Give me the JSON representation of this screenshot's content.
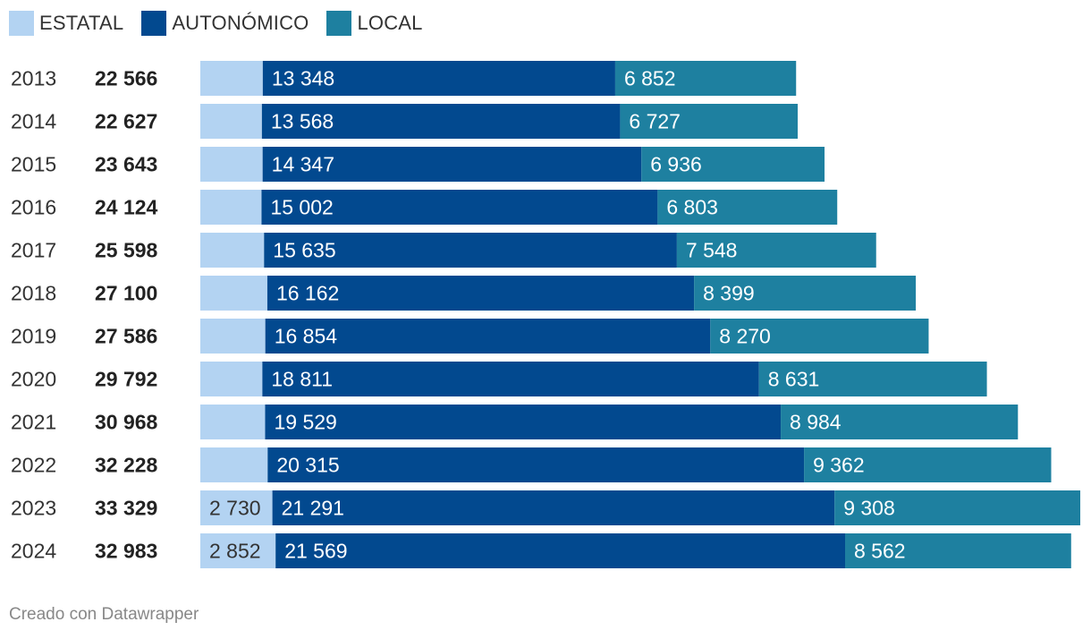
{
  "legend": [
    {
      "label": "ESTATAL",
      "color": "#b3d3f2"
    },
    {
      "label": "AUTONÓMICO",
      "color": "#02498f"
    },
    {
      "label": "LOCAL",
      "color": "#1e80a0"
    }
  ],
  "footer": {
    "credit": "Creado con Datawrapper"
  },
  "chart_data": {
    "type": "bar",
    "orientation": "horizontal",
    "stacked": true,
    "title": "",
    "categories": [
      "2013",
      "2014",
      "2015",
      "2016",
      "2017",
      "2018",
      "2019",
      "2020",
      "2021",
      "2022",
      "2023",
      "2024"
    ],
    "totals": [
      "22 566",
      "22 627",
      "23 643",
      "24 124",
      "25 598",
      "27 100",
      "27 586",
      "29 792",
      "30 968",
      "32 228",
      "33 329",
      "32 983"
    ],
    "series": [
      {
        "name": "ESTATAL",
        "color": "#b3d3f2",
        "label_color": "#333333",
        "values": [
          2366,
          2332,
          2360,
          2319,
          2415,
          2539,
          2462,
          2350,
          2455,
          2551,
          2730,
          2852
        ],
        "labels": [
          "",
          "",
          "",
          "",
          "",
          "",
          "",
          "",
          "",
          "",
          "2 730",
          "2 852"
        ]
      },
      {
        "name": "AUTONÓMICO",
        "color": "#02498f",
        "label_color": "#ffffff",
        "values": [
          13348,
          13568,
          14347,
          15002,
          15635,
          16162,
          16854,
          18811,
          19529,
          20315,
          21291,
          21569
        ],
        "labels": [
          "13 348",
          "13 568",
          "14 347",
          "15 002",
          "15 635",
          "16 162",
          "16 854",
          "18 811",
          "19 529",
          "20 315",
          "21 291",
          "21 569"
        ]
      },
      {
        "name": "LOCAL",
        "color": "#1e80a0",
        "label_color": "#ffffff",
        "values": [
          6852,
          6727,
          6936,
          6803,
          7548,
          8399,
          8270,
          8631,
          8984,
          9362,
          9308,
          8562
        ],
        "labels": [
          "6 852",
          "6 727",
          "6 936",
          "6 803",
          "7 548",
          "8 399",
          "8 270",
          "8 631",
          "8 984",
          "9 362",
          "9 308",
          "8 562"
        ]
      }
    ],
    "xlim": [
      0,
      33329
    ],
    "grid": false
  }
}
